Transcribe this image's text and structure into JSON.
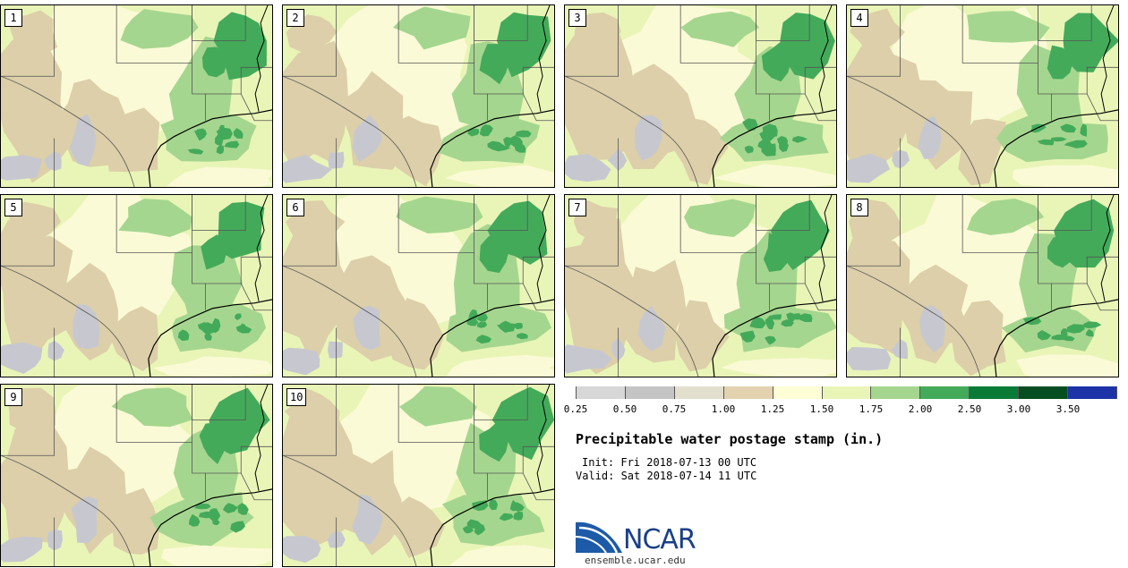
{
  "figure": {
    "title": "Precipitable water postage stamp (in.)",
    "init": "Init: Fri 2018-07-13 00 UTC",
    "valid": "Valid: Sat 2018-07-14 11 UTC",
    "website": "ensemble.ucar.edu",
    "logo_text": "NCAR"
  },
  "members": [
    {
      "label": "1"
    },
    {
      "label": "2"
    },
    {
      "label": "3"
    },
    {
      "label": "4"
    },
    {
      "label": "5"
    },
    {
      "label": "6"
    },
    {
      "label": "7"
    },
    {
      "label": "8"
    },
    {
      "label": "9"
    },
    {
      "label": "10"
    }
  ],
  "colorbar": {
    "ticks": [
      "0.25",
      "0.50",
      "0.75",
      "1.00",
      "1.25",
      "1.50",
      "1.75",
      "2.00",
      "2.50",
      "3.00",
      "3.50"
    ],
    "colors": [
      "#d7d7d7",
      "#c4c4c4",
      "#e3dfcf",
      "#e2d2b0",
      "#fdfdd6",
      "#e9f5b7",
      "#a5d68f",
      "#43aa5a",
      "#097b36",
      "#044e21",
      "#1e33a8"
    ]
  },
  "colors": {
    "dry_gray": "#c7c8cf",
    "tan": "#dccfa9",
    "cream": "#fbfad6",
    "light_green": "#e9f5b7",
    "mid_green": "#a5d68f",
    "green": "#43aa5a",
    "border": "#000000"
  }
}
